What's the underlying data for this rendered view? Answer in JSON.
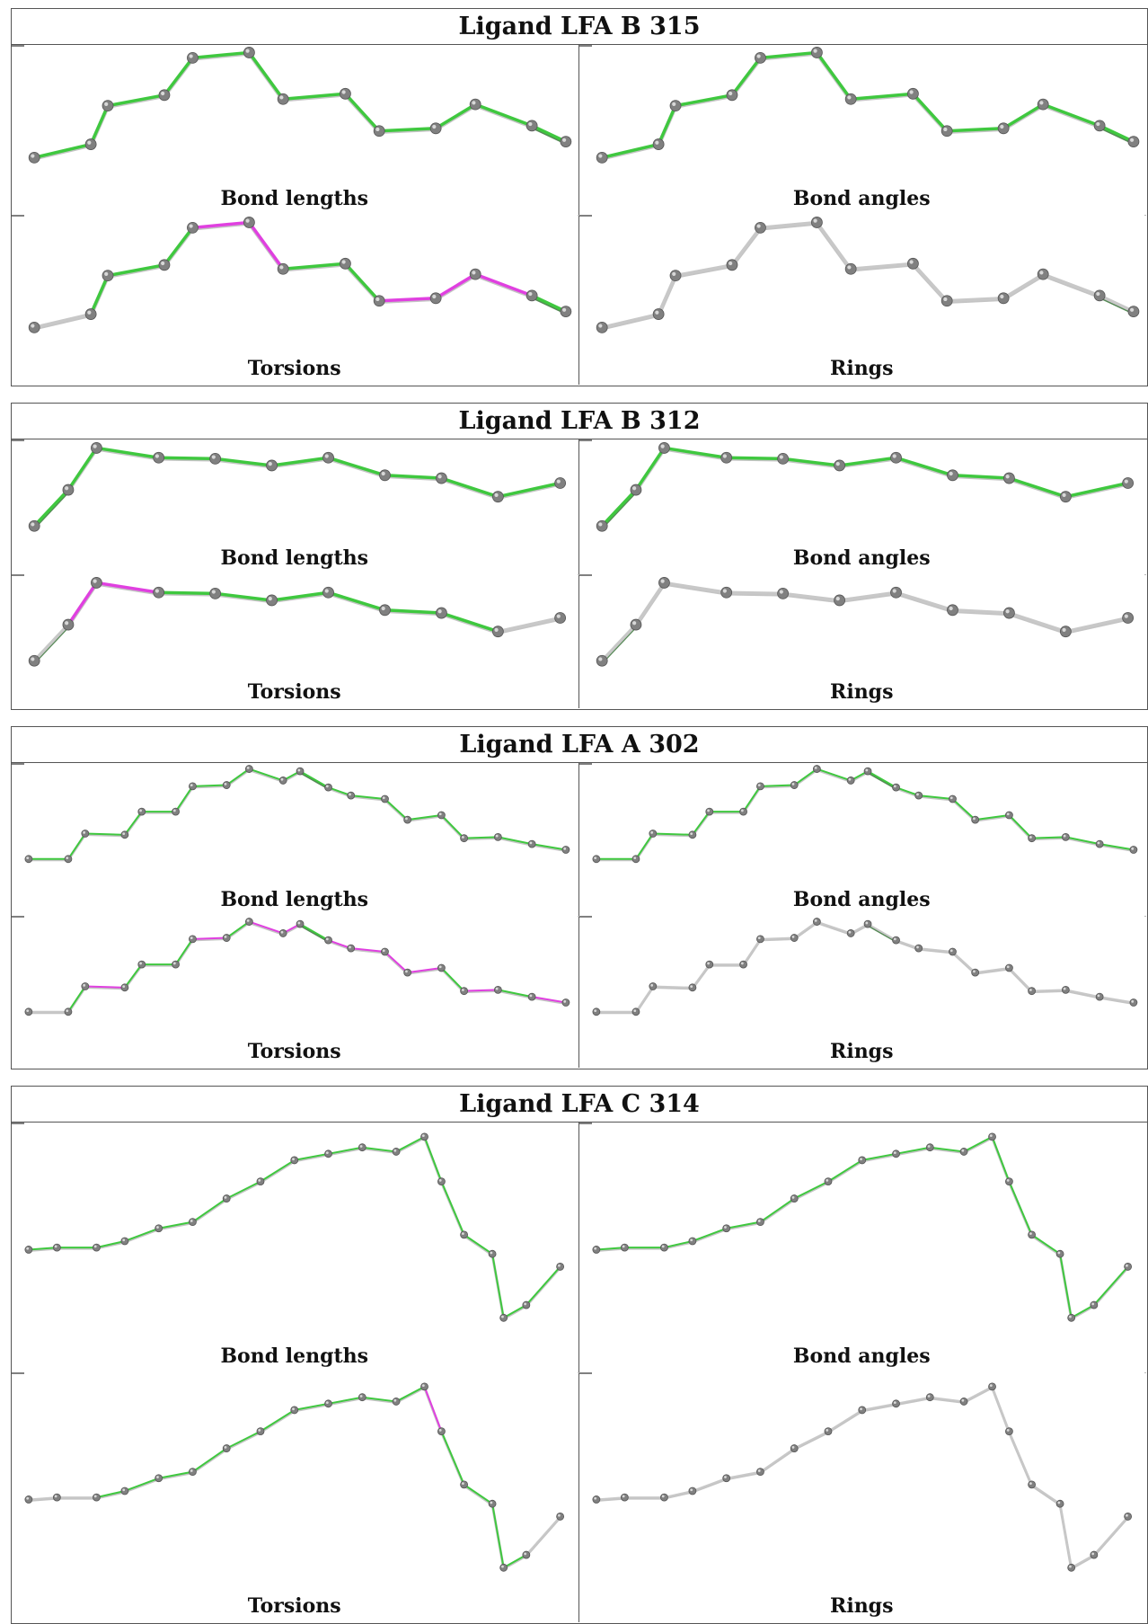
{
  "colors": {
    "outlier": "#e040e0",
    "not_outlier": "#3fc83f",
    "not_applicable": "#c8c8c8",
    "atom": "#808080"
  },
  "ligands": [
    {
      "title": "Ligand LFA B 315",
      "panels": [
        {
          "label": "Bond lengths",
          "bonds": [
            "g",
            "g",
            "g",
            "g",
            "g",
            "g",
            "g",
            "g",
            "g",
            "g",
            "g",
            "gd"
          ]
        },
        {
          "label": "Bond angles",
          "bonds": [
            "g",
            "g",
            "g",
            "g",
            "g",
            "g",
            "g",
            "g",
            "g",
            "g",
            "g",
            "gd"
          ]
        },
        {
          "label": "Torsions",
          "bonds": [
            "n",
            "g",
            "g",
            "g",
            "m",
            "m",
            "g",
            "g",
            "m",
            "m",
            "m",
            "gd"
          ]
        },
        {
          "label": "Rings",
          "bonds": [
            "n",
            "n",
            "n",
            "n",
            "n",
            "n",
            "n",
            "n",
            "n",
            "n",
            "n",
            "nd"
          ]
        }
      ]
    },
    {
      "title": "Ligand LFA B 312",
      "panels": [
        {
          "label": "Bond lengths",
          "bonds": [
            "gd",
            "g",
            "g",
            "g",
            "g",
            "g",
            "g",
            "g",
            "g",
            "g",
            "g"
          ]
        },
        {
          "label": "Bond angles",
          "bonds": [
            "gd",
            "g",
            "g",
            "g",
            "g",
            "g",
            "g",
            "g",
            "g",
            "g",
            "g"
          ]
        },
        {
          "label": "Torsions",
          "bonds": [
            "nd",
            "m",
            "m",
            "g",
            "g",
            "g",
            "g",
            "g",
            "g",
            "n",
            "n"
          ]
        },
        {
          "label": "Rings",
          "bonds": [
            "nd",
            "n",
            "n",
            "n",
            "n",
            "n",
            "n",
            "n",
            "n",
            "n",
            "n"
          ]
        }
      ]
    },
    {
      "title": "Ligand LFA A 302",
      "panels": [
        {
          "label": "Bond lengths",
          "bonds": [
            "g",
            "g",
            "g",
            "g",
            "g",
            "g",
            "g",
            "g",
            "g",
            "g",
            "gd",
            "g",
            "g",
            "g",
            "g",
            "g",
            "g",
            "g",
            "g",
            "g",
            "g",
            "g"
          ]
        },
        {
          "label": "Bond angles",
          "bonds": [
            "g",
            "g",
            "g",
            "g",
            "g",
            "g",
            "g",
            "g",
            "g",
            "g",
            "gd",
            "g",
            "g",
            "g",
            "g",
            "g",
            "g",
            "g",
            "g",
            "g",
            "g",
            "g"
          ]
        },
        {
          "label": "Torsions",
          "bonds": [
            "n",
            "g",
            "m",
            "g",
            "g",
            "g",
            "m",
            "g",
            "m",
            "m",
            "gd",
            "m",
            "m",
            "m",
            "m",
            "g",
            "m",
            "g",
            "m",
            "g",
            "n",
            "n"
          ]
        },
        {
          "label": "Rings",
          "bonds": [
            "n",
            "n",
            "n",
            "n",
            "n",
            "n",
            "n",
            "n",
            "n",
            "n",
            "nd",
            "n",
            "n",
            "n",
            "n",
            "n",
            "n",
            "n",
            "n",
            "n",
            "n",
            "n"
          ]
        }
      ]
    },
    {
      "title": "Ligand LFA C 314",
      "panels": [
        {
          "label": "Bond lengths",
          "bonds": [
            "g",
            "g",
            "g",
            "g",
            "g",
            "g",
            "g",
            "g",
            "g",
            "g",
            "g",
            "g",
            "g",
            "g",
            "g",
            "g",
            "g",
            "g"
          ]
        },
        {
          "label": "Bond angles",
          "bonds": [
            "g",
            "g",
            "g",
            "g",
            "g",
            "g",
            "g",
            "g",
            "g",
            "g",
            "g",
            "g",
            "g",
            "g",
            "g",
            "g",
            "g",
            "g"
          ]
        },
        {
          "label": "Torsions",
          "bonds": [
            "n",
            "n",
            "g",
            "g",
            "g",
            "g",
            "g",
            "g",
            "g",
            "g",
            "g",
            "g",
            "m",
            "g",
            "g",
            "g",
            "g",
            "n"
          ]
        },
        {
          "label": "Rings",
          "bonds": [
            "n",
            "n",
            "n",
            "n",
            "n",
            "n",
            "n",
            "n",
            "n",
            "n",
            "n",
            "n",
            "n",
            "n",
            "n",
            "n",
            "n",
            "n"
          ]
        }
      ]
    }
  ]
}
